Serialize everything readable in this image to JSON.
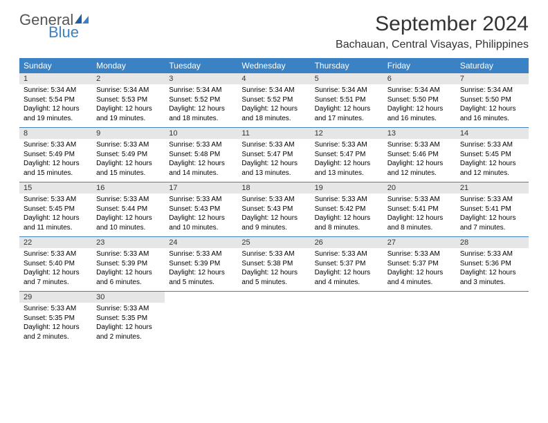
{
  "logo": {
    "general": "General",
    "blue": "Blue"
  },
  "header": {
    "month_title": "September 2024",
    "location": "Bachauan, Central Visayas, Philippines"
  },
  "colors": {
    "header_bg": "#3b82c4",
    "daynum_bg": "#e6e6e6",
    "text": "#000000",
    "border": "#3b82c4"
  },
  "days_of_week": [
    "Sunday",
    "Monday",
    "Tuesday",
    "Wednesday",
    "Thursday",
    "Friday",
    "Saturday"
  ],
  "weeks": [
    [
      {
        "num": "1",
        "sunrise": "Sunrise: 5:34 AM",
        "sunset": "Sunset: 5:54 PM",
        "daylight": "Daylight: 12 hours and 19 minutes."
      },
      {
        "num": "2",
        "sunrise": "Sunrise: 5:34 AM",
        "sunset": "Sunset: 5:53 PM",
        "daylight": "Daylight: 12 hours and 19 minutes."
      },
      {
        "num": "3",
        "sunrise": "Sunrise: 5:34 AM",
        "sunset": "Sunset: 5:52 PM",
        "daylight": "Daylight: 12 hours and 18 minutes."
      },
      {
        "num": "4",
        "sunrise": "Sunrise: 5:34 AM",
        "sunset": "Sunset: 5:52 PM",
        "daylight": "Daylight: 12 hours and 18 minutes."
      },
      {
        "num": "5",
        "sunrise": "Sunrise: 5:34 AM",
        "sunset": "Sunset: 5:51 PM",
        "daylight": "Daylight: 12 hours and 17 minutes."
      },
      {
        "num": "6",
        "sunrise": "Sunrise: 5:34 AM",
        "sunset": "Sunset: 5:50 PM",
        "daylight": "Daylight: 12 hours and 16 minutes."
      },
      {
        "num": "7",
        "sunrise": "Sunrise: 5:34 AM",
        "sunset": "Sunset: 5:50 PM",
        "daylight": "Daylight: 12 hours and 16 minutes."
      }
    ],
    [
      {
        "num": "8",
        "sunrise": "Sunrise: 5:33 AM",
        "sunset": "Sunset: 5:49 PM",
        "daylight": "Daylight: 12 hours and 15 minutes."
      },
      {
        "num": "9",
        "sunrise": "Sunrise: 5:33 AM",
        "sunset": "Sunset: 5:49 PM",
        "daylight": "Daylight: 12 hours and 15 minutes."
      },
      {
        "num": "10",
        "sunrise": "Sunrise: 5:33 AM",
        "sunset": "Sunset: 5:48 PM",
        "daylight": "Daylight: 12 hours and 14 minutes."
      },
      {
        "num": "11",
        "sunrise": "Sunrise: 5:33 AM",
        "sunset": "Sunset: 5:47 PM",
        "daylight": "Daylight: 12 hours and 13 minutes."
      },
      {
        "num": "12",
        "sunrise": "Sunrise: 5:33 AM",
        "sunset": "Sunset: 5:47 PM",
        "daylight": "Daylight: 12 hours and 13 minutes."
      },
      {
        "num": "13",
        "sunrise": "Sunrise: 5:33 AM",
        "sunset": "Sunset: 5:46 PM",
        "daylight": "Daylight: 12 hours and 12 minutes."
      },
      {
        "num": "14",
        "sunrise": "Sunrise: 5:33 AM",
        "sunset": "Sunset: 5:45 PM",
        "daylight": "Daylight: 12 hours and 12 minutes."
      }
    ],
    [
      {
        "num": "15",
        "sunrise": "Sunrise: 5:33 AM",
        "sunset": "Sunset: 5:45 PM",
        "daylight": "Daylight: 12 hours and 11 minutes."
      },
      {
        "num": "16",
        "sunrise": "Sunrise: 5:33 AM",
        "sunset": "Sunset: 5:44 PM",
        "daylight": "Daylight: 12 hours and 10 minutes."
      },
      {
        "num": "17",
        "sunrise": "Sunrise: 5:33 AM",
        "sunset": "Sunset: 5:43 PM",
        "daylight": "Daylight: 12 hours and 10 minutes."
      },
      {
        "num": "18",
        "sunrise": "Sunrise: 5:33 AM",
        "sunset": "Sunset: 5:43 PM",
        "daylight": "Daylight: 12 hours and 9 minutes."
      },
      {
        "num": "19",
        "sunrise": "Sunrise: 5:33 AM",
        "sunset": "Sunset: 5:42 PM",
        "daylight": "Daylight: 12 hours and 8 minutes."
      },
      {
        "num": "20",
        "sunrise": "Sunrise: 5:33 AM",
        "sunset": "Sunset: 5:41 PM",
        "daylight": "Daylight: 12 hours and 8 minutes."
      },
      {
        "num": "21",
        "sunrise": "Sunrise: 5:33 AM",
        "sunset": "Sunset: 5:41 PM",
        "daylight": "Daylight: 12 hours and 7 minutes."
      }
    ],
    [
      {
        "num": "22",
        "sunrise": "Sunrise: 5:33 AM",
        "sunset": "Sunset: 5:40 PM",
        "daylight": "Daylight: 12 hours and 7 minutes."
      },
      {
        "num": "23",
        "sunrise": "Sunrise: 5:33 AM",
        "sunset": "Sunset: 5:39 PM",
        "daylight": "Daylight: 12 hours and 6 minutes."
      },
      {
        "num": "24",
        "sunrise": "Sunrise: 5:33 AM",
        "sunset": "Sunset: 5:39 PM",
        "daylight": "Daylight: 12 hours and 5 minutes."
      },
      {
        "num": "25",
        "sunrise": "Sunrise: 5:33 AM",
        "sunset": "Sunset: 5:38 PM",
        "daylight": "Daylight: 12 hours and 5 minutes."
      },
      {
        "num": "26",
        "sunrise": "Sunrise: 5:33 AM",
        "sunset": "Sunset: 5:37 PM",
        "daylight": "Daylight: 12 hours and 4 minutes."
      },
      {
        "num": "27",
        "sunrise": "Sunrise: 5:33 AM",
        "sunset": "Sunset: 5:37 PM",
        "daylight": "Daylight: 12 hours and 4 minutes."
      },
      {
        "num": "28",
        "sunrise": "Sunrise: 5:33 AM",
        "sunset": "Sunset: 5:36 PM",
        "daylight": "Daylight: 12 hours and 3 minutes."
      }
    ],
    [
      {
        "num": "29",
        "sunrise": "Sunrise: 5:33 AM",
        "sunset": "Sunset: 5:35 PM",
        "daylight": "Daylight: 12 hours and 2 minutes."
      },
      {
        "num": "30",
        "sunrise": "Sunrise: 5:33 AM",
        "sunset": "Sunset: 5:35 PM",
        "daylight": "Daylight: 12 hours and 2 minutes."
      },
      null,
      null,
      null,
      null,
      null
    ]
  ]
}
